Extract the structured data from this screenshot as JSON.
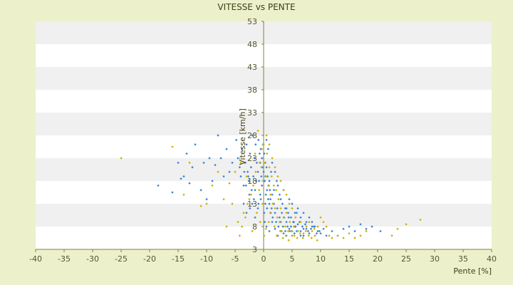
{
  "chart_data": {
    "type": "scatter",
    "title": "VITESSE vs PENTE",
    "xlabel": "Pente [%]",
    "ylabel": "Vitesse [km/h]",
    "xlim": [
      -40,
      40
    ],
    "ylim": [
      3,
      53
    ],
    "x_ticks": [
      -40,
      -35,
      -30,
      -25,
      -20,
      -15,
      -10,
      -5,
      0,
      5,
      10,
      15,
      20,
      25,
      30,
      35,
      40
    ],
    "y_ticks": [
      3,
      8,
      13,
      18,
      23,
      28,
      33,
      38,
      43,
      48,
      53
    ],
    "grid": "horizontal alternating bands",
    "colors": {
      "background": "#ecf1cc",
      "plot_band_light": "#ffffff",
      "plot_band_dark": "#f0f0f0",
      "axis": "#808040",
      "text": "#404010"
    },
    "series": [
      {
        "color": "#3b82d6",
        "points": [
          [
            -18.5,
            17
          ],
          [
            -16,
            15.5
          ],
          [
            -15,
            22
          ],
          [
            -14.5,
            18.5
          ],
          [
            -14,
            19
          ],
          [
            -13.5,
            24
          ],
          [
            -13,
            17.5
          ],
          [
            -12.5,
            21
          ],
          [
            -12,
            26
          ],
          [
            -11,
            16
          ],
          [
            -10.5,
            22
          ],
          [
            -10,
            14
          ],
          [
            -9.5,
            23
          ],
          [
            -9,
            18
          ],
          [
            -8.5,
            21.5
          ],
          [
            -8,
            28
          ],
          [
            -7.5,
            23
          ],
          [
            -7,
            19
          ],
          [
            -6.5,
            25
          ],
          [
            -6,
            20
          ],
          [
            -5.5,
            22
          ],
          [
            -4.8,
            27
          ],
          [
            -4.5,
            23
          ],
          [
            -4.2,
            21
          ],
          [
            -4,
            19
          ],
          [
            -3.8,
            25
          ],
          [
            -3.5,
            17
          ],
          [
            -3.2,
            22
          ],
          [
            -3,
            26
          ],
          [
            -2.8,
            20
          ],
          [
            -2.6,
            18
          ],
          [
            -2.4,
            24
          ],
          [
            -2.2,
            21
          ],
          [
            -2,
            28
          ],
          [
            -1.8,
            19
          ],
          [
            -1.6,
            23
          ],
          [
            -1.5,
            16
          ],
          [
            -1.4,
            26
          ],
          [
            -1.2,
            22
          ],
          [
            -1,
            20
          ],
          [
            -0.9,
            27
          ],
          [
            -0.8,
            18
          ],
          [
            -0.7,
            24
          ],
          [
            -0.6,
            22
          ],
          [
            -0.5,
            25
          ],
          [
            -0.4,
            19
          ],
          [
            -0.3,
            23
          ],
          [
            -0.2,
            21
          ],
          [
            -0.1,
            26
          ],
          [
            0,
            20
          ],
          [
            0.1,
            24
          ],
          [
            0.2,
            18
          ],
          [
            0.3,
            22
          ],
          [
            0.4,
            15
          ],
          [
            0.5,
            21
          ],
          [
            0.6,
            12
          ],
          [
            0.7,
            19
          ],
          [
            0.8,
            14
          ],
          [
            0.9,
            17
          ],
          [
            1,
            13
          ],
          [
            1.1,
            16
          ],
          [
            1.2,
            11
          ],
          [
            1.3,
            20
          ],
          [
            1.4,
            12
          ],
          [
            1.5,
            15
          ],
          [
            1.6,
            10
          ],
          [
            1.8,
            13
          ],
          [
            2,
            11
          ],
          [
            2.2,
            9
          ],
          [
            2.4,
            12
          ],
          [
            2.6,
            8
          ],
          [
            2.8,
            10
          ],
          [
            3,
            9
          ],
          [
            3.2,
            11
          ],
          [
            3.4,
            8
          ],
          [
            3.6,
            10
          ],
          [
            3.8,
            7
          ],
          [
            4,
            9
          ],
          [
            4.2,
            8
          ],
          [
            4.4,
            10
          ],
          [
            4.6,
            7
          ],
          [
            4.8,
            8
          ],
          [
            5,
            7
          ],
          [
            5.2,
            9
          ],
          [
            5.4,
            6.5
          ],
          [
            5.6,
            8
          ],
          [
            5.8,
            7
          ],
          [
            6,
            8.5
          ],
          [
            6.5,
            7
          ],
          [
            7,
            6
          ],
          [
            7.5,
            7.5
          ],
          [
            8,
            6.5
          ],
          [
            8.5,
            8
          ],
          [
            9,
            6
          ],
          [
            9.5,
            7
          ],
          [
            10,
            6.5
          ],
          [
            10.5,
            7.5
          ],
          [
            11,
            6
          ],
          [
            12,
            7
          ],
          [
            13,
            6
          ],
          [
            14,
            7.5
          ],
          [
            15,
            8
          ],
          [
            16,
            7
          ],
          [
            17,
            8.5
          ],
          [
            18,
            7.5
          ],
          [
            19,
            8
          ],
          [
            20.5,
            7
          ],
          [
            2,
            20
          ],
          [
            2.5,
            17
          ],
          [
            3,
            14
          ],
          [
            3.5,
            16
          ],
          [
            4,
            12
          ],
          [
            4.5,
            14
          ],
          [
            5,
            13
          ],
          [
            5.5,
            11
          ],
          [
            6,
            12
          ],
          [
            6.5,
            10
          ],
          [
            7,
            11
          ],
          [
            7.5,
            9
          ],
          [
            8,
            10
          ],
          [
            8.5,
            9
          ],
          [
            9,
            8
          ],
          [
            1,
            18
          ],
          [
            1.5,
            22
          ],
          [
            0.8,
            25
          ],
          [
            0.5,
            27
          ],
          [
            0.3,
            19
          ],
          [
            -0.5,
            14
          ],
          [
            -1,
            12
          ],
          [
            -1.5,
            10
          ],
          [
            -2,
            13
          ],
          [
            -2.5,
            15
          ],
          [
            -3,
            11
          ],
          [
            -3.5,
            13
          ],
          [
            0.2,
            9
          ],
          [
            0.5,
            8
          ],
          [
            1,
            7
          ],
          [
            1.5,
            9
          ],
          [
            2,
            7.5
          ],
          [
            2.5,
            6
          ],
          [
            3,
            7
          ],
          [
            3.5,
            6.5
          ],
          [
            4,
            6
          ],
          [
            4.5,
            7.5
          ],
          [
            5,
            6
          ],
          [
            5.5,
            8
          ],
          [
            6,
            7
          ],
          [
            6.5,
            6
          ],
          [
            7,
            7.5
          ],
          [
            0.1,
            11
          ],
          [
            0.3,
            13
          ],
          [
            0.6,
            16
          ],
          [
            1.2,
            14
          ],
          [
            1.8,
            16
          ],
          [
            2.3,
            18
          ],
          [
            2.8,
            15
          ],
          [
            3.3,
            13
          ],
          [
            3.8,
            12
          ],
          [
            4.3,
            11
          ],
          [
            4.8,
            10
          ],
          [
            5.3,
            9
          ],
          [
            5.8,
            11
          ],
          [
            6.3,
            9
          ],
          [
            6.8,
            8
          ],
          [
            7.3,
            8.5
          ],
          [
            7.8,
            7
          ],
          [
            8.3,
            7.5
          ],
          [
            8.8,
            8
          ],
          [
            9.3,
            6.5
          ],
          [
            9.8,
            7
          ],
          [
            -0.3,
            17
          ],
          [
            -0.6,
            15
          ],
          [
            -0.9,
            13
          ],
          [
            -1.3,
            18
          ],
          [
            -1.7,
            14
          ],
          [
            -2.1,
            16
          ],
          [
            -2.4,
            12
          ],
          [
            -2.7,
            19
          ],
          [
            -3.1,
            17
          ],
          [
            -3.4,
            20
          ]
        ]
      },
      {
        "color": "#c8b400",
        "points": [
          [
            -25,
            23
          ],
          [
            -16,
            25.5
          ],
          [
            -14,
            15
          ],
          [
            -13,
            22
          ],
          [
            -11,
            12.5
          ],
          [
            -10,
            13
          ],
          [
            -9,
            17
          ],
          [
            -8,
            20
          ],
          [
            -7,
            14
          ],
          [
            -6.5,
            8
          ],
          [
            -6,
            17.5
          ],
          [
            -5.5,
            13
          ],
          [
            -5,
            20
          ],
          [
            -4.5,
            9
          ],
          [
            -4,
            22
          ],
          [
            -3.5,
            11
          ],
          [
            -3,
            19
          ],
          [
            -2.5,
            14
          ],
          [
            -2,
            7
          ],
          [
            -1.5,
            24
          ],
          [
            -1.2,
            11
          ],
          [
            -1,
            29
          ],
          [
            -0.8,
            16
          ],
          [
            -0.6,
            9
          ],
          [
            -0.4,
            21
          ],
          [
            -0.2,
            13
          ],
          [
            0,
            26
          ],
          [
            0.2,
            22
          ],
          [
            0.4,
            19
          ],
          [
            0.6,
            24
          ],
          [
            0.8,
            17
          ],
          [
            1,
            21
          ],
          [
            1.2,
            15
          ],
          [
            1.4,
            19
          ],
          [
            1.6,
            13
          ],
          [
            1.8,
            17
          ],
          [
            2,
            12
          ],
          [
            2.2,
            16
          ],
          [
            2.4,
            10
          ],
          [
            2.6,
            14
          ],
          [
            2.8,
            9
          ],
          [
            3,
            12
          ],
          [
            3.2,
            7
          ],
          [
            3.5,
            10
          ],
          [
            3.8,
            8
          ],
          [
            4,
            11
          ],
          [
            4.3,
            7
          ],
          [
            4.6,
            9
          ],
          [
            5,
            6
          ],
          [
            5.3,
            8
          ],
          [
            5.6,
            10
          ],
          [
            6,
            7
          ],
          [
            6.5,
            9
          ],
          [
            7,
            6.5
          ],
          [
            7.5,
            8
          ],
          [
            8,
            9
          ],
          [
            8.5,
            7
          ],
          [
            9,
            6
          ],
          [
            9.5,
            8
          ],
          [
            10,
            10
          ],
          [
            10.5,
            9
          ],
          [
            11,
            8
          ],
          [
            11.5,
            6
          ],
          [
            12,
            5.5
          ],
          [
            13,
            6
          ],
          [
            14,
            5.5
          ],
          [
            15,
            6.5
          ],
          [
            16,
            5.5
          ],
          [
            17,
            6
          ],
          [
            18,
            7
          ],
          [
            22.5,
            6
          ],
          [
            23.5,
            7.5
          ],
          [
            25,
            8.5
          ],
          [
            27.5,
            9.5
          ],
          [
            0.5,
            28
          ],
          [
            1,
            26
          ],
          [
            1.5,
            23
          ],
          [
            2,
            21
          ],
          [
            2.5,
            19
          ],
          [
            3,
            18
          ],
          [
            3.5,
            16
          ],
          [
            4,
            15
          ],
          [
            4.5,
            13
          ],
          [
            5,
            12
          ],
          [
            -0.3,
            25
          ],
          [
            -0.7,
            22
          ],
          [
            -1.4,
            20
          ],
          [
            -1.8,
            17
          ],
          [
            -2.2,
            15
          ],
          [
            -2.8,
            13
          ],
          [
            -3.2,
            10
          ],
          [
            -3.8,
            8
          ],
          [
            -4.2,
            6
          ],
          [
            0.1,
            6
          ],
          [
            0.4,
            7.5
          ],
          [
            0.9,
            9
          ],
          [
            1.3,
            11
          ],
          [
            1.9,
            8
          ],
          [
            2.3,
            6
          ],
          [
            2.9,
            7
          ],
          [
            3.4,
            5.5
          ],
          [
            3.9,
            6
          ],
          [
            4.4,
            5
          ],
          [
            4.9,
            7
          ],
          [
            5.4,
            6
          ],
          [
            5.9,
            5.5
          ],
          [
            6.4,
            6.5
          ],
          [
            6.9,
            5.5
          ],
          [
            7.4,
            7
          ],
          [
            7.9,
            6
          ],
          [
            8.4,
            5.5
          ],
          [
            8.9,
            7.5
          ],
          [
            9.4,
            5
          ]
        ]
      }
    ]
  }
}
